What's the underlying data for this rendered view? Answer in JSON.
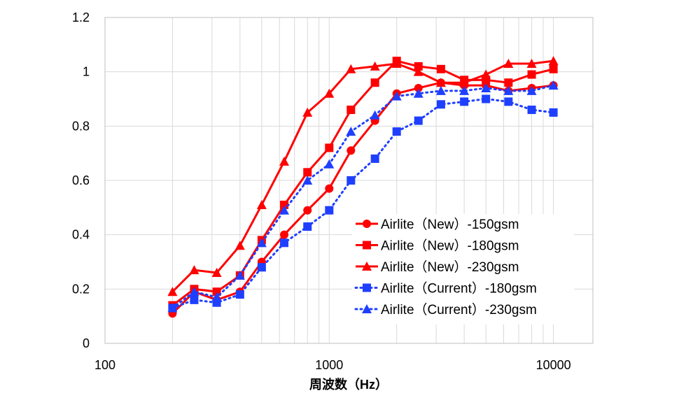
{
  "chart_data": {
    "type": "line",
    "title": "",
    "xlabel": "周波数（Hz）",
    "ylabel": "",
    "x_scale": "log",
    "xlim": [
      100,
      15000
    ],
    "ylim": [
      0,
      1.2
    ],
    "x_tick_labels": [
      "100",
      "1000",
      "10000"
    ],
    "x_tick_values": [
      100,
      1000,
      10000
    ],
    "y_tick_labels": [
      "0",
      "0.2",
      "0.4",
      "0.6",
      "0.8",
      "1",
      "1.2"
    ],
    "y_tick_values": [
      0,
      0.2,
      0.4,
      0.6,
      0.8,
      1.0,
      1.2
    ],
    "grid": "vertical minor log gridlines and horizontal gridlines",
    "legend_position": "bottom-right inside plot",
    "x": [
      200,
      250,
      315,
      400,
      500,
      630,
      800,
      1000,
      1250,
      1600,
      2000,
      2500,
      3150,
      4000,
      5000,
      6300,
      8000,
      10000
    ],
    "series": [
      {
        "name": "Airlite（New）-150gsm",
        "color": "#ff0000",
        "marker": "circle",
        "line_style": "solid",
        "values": [
          0.11,
          0.19,
          0.16,
          0.19,
          0.3,
          0.4,
          0.49,
          0.57,
          0.71,
          0.82,
          0.92,
          0.94,
          0.96,
          0.95,
          0.95,
          0.93,
          0.94,
          0.95
        ]
      },
      {
        "name": "Airlite（New）-180gsm",
        "color": "#ff0000",
        "marker": "square",
        "line_style": "solid",
        "values": [
          0.14,
          0.2,
          0.19,
          0.25,
          0.38,
          0.51,
          0.63,
          0.72,
          0.86,
          0.96,
          1.04,
          1.02,
          1.01,
          0.97,
          0.97,
          0.96,
          0.99,
          1.01
        ]
      },
      {
        "name": "Airlite（New）-230gsm",
        "color": "#ff0000",
        "marker": "triangle",
        "line_style": "solid",
        "values": [
          0.19,
          0.27,
          0.26,
          0.36,
          0.51,
          0.67,
          0.85,
          0.92,
          1.01,
          1.02,
          1.03,
          1.0,
          0.96,
          0.96,
          0.99,
          1.03,
          1.03,
          1.04
        ]
      },
      {
        "name": "Airlite（Current）-180gsm",
        "color": "#1f3fff",
        "marker": "square",
        "line_style": "dotted",
        "values": [
          0.13,
          0.16,
          0.15,
          0.18,
          0.28,
          0.37,
          0.43,
          0.49,
          0.6,
          0.68,
          0.78,
          0.82,
          0.88,
          0.89,
          0.9,
          0.89,
          0.86,
          0.85
        ]
      },
      {
        "name": "Airlite（Current）-230gsm",
        "color": "#1f3fff",
        "marker": "triangle",
        "line_style": "dotted",
        "values": [
          0.13,
          0.19,
          0.17,
          0.25,
          0.37,
          0.49,
          0.6,
          0.66,
          0.78,
          0.84,
          0.91,
          0.92,
          0.93,
          0.93,
          0.94,
          0.93,
          0.93,
          0.95
        ]
      }
    ]
  }
}
